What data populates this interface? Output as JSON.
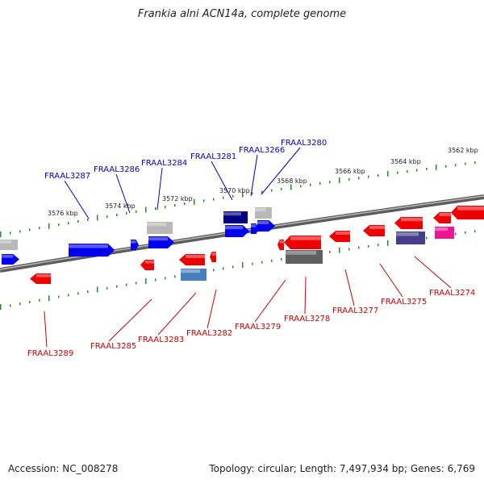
{
  "title": "Frankia alni ACN14a, complete genome",
  "footer": {
    "accession": "Accession: NC_008278",
    "summary": "Topology: circular; Length: 7,497,934 bp; Genes: 6,769"
  },
  "colors": {
    "forward_label": "#0000cc",
    "reverse_label": "#cc0000",
    "tick": "#228b22",
    "axis": "#808080"
  },
  "ticks": [
    "3562 kbp",
    "3564 kbp",
    "3566 kbp",
    "3568 kbp",
    "3570 kbp",
    "3572 kbp",
    "3574 kbp",
    "3576 kbp"
  ],
  "genes_forward": [
    "FRAAL3287",
    "FRAAL3286",
    "FRAAL3284",
    "FRAAL3281",
    "FRAAL3266",
    "FRAAL3280"
  ],
  "genes_reverse": [
    "FRAAL3289",
    "FRAAL3285",
    "FRAAL3283",
    "FRAAL3282",
    "FRAAL3279",
    "FRAAL3278",
    "FRAAL3277",
    "FRAAL3275",
    "FRAAL3274"
  ]
}
